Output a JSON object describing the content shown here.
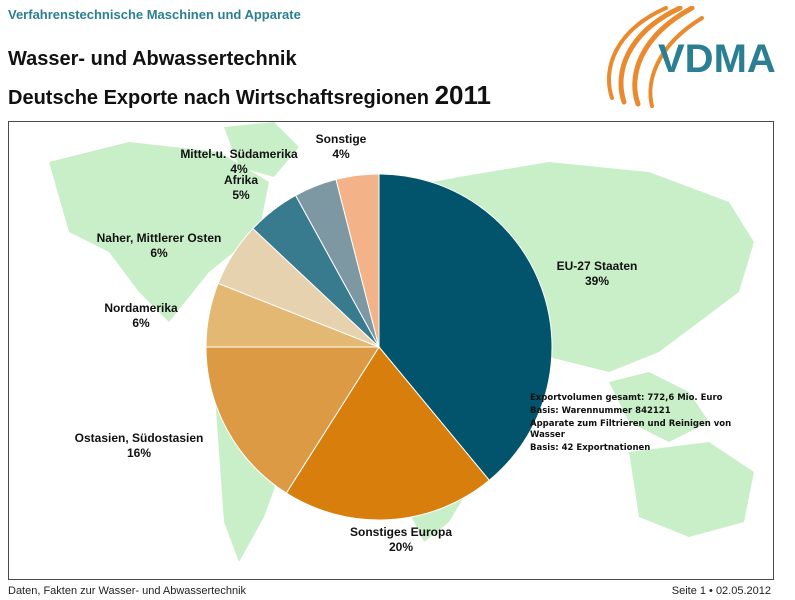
{
  "header": {
    "top_label": "Verfahrenstechnische Maschinen und Apparate",
    "title_line1": "Wasser- und Abwassertechnik",
    "title_line2": "Deutsche Exporte nach Wirtschaftsregionen",
    "title_year": "2011",
    "logo_text": "VDMA"
  },
  "colors": {
    "header_teal": "#2a7f92",
    "logo_orange": "#e98a2e",
    "map_green": "#c9efc9"
  },
  "chart_data": {
    "type": "pie",
    "title": "Deutsche Exporte nach Wirtschaftsregionen 2011",
    "slices": [
      {
        "label": "EU-27 Staaten",
        "value": 39,
        "display": "39%",
        "color": "#02546c"
      },
      {
        "label": "Sonstiges Europa",
        "value": 20,
        "display": "20%",
        "color": "#d77e0c"
      },
      {
        "label": "Ostasien, Südostasien",
        "value": 16,
        "display": "16%",
        "color": "#dd9a44"
      },
      {
        "label": "Nordamerika",
        "value": 6,
        "display": "6%",
        "color": "#e3b873"
      },
      {
        "label": "Naher, Mittlerer Osten",
        "value": 6,
        "display": "6%",
        "color": "#e7d2b0"
      },
      {
        "label": "Afrika",
        "value": 5,
        "display": "5%",
        "color": "#387a8e"
      },
      {
        "label": "Mittel-u. Südamerika",
        "value": 4,
        "display": "4%",
        "color": "#7d98a3"
      },
      {
        "label": "Sonstige",
        "value": 4,
        "display": "4%",
        "color": "#f3b287"
      }
    ]
  },
  "info": {
    "line1": "Exportvolumen gesamt: 772,6 Mio. Euro",
    "line2": "Basis: Warennummer 842121",
    "line3": "Apparate zum Filtrieren und Reinigen von Wasser",
    "line4": "Basis: 42 Exportnationen"
  },
  "footer": {
    "left": "Daten, Fakten zur Wasser- und Abwassertechnik",
    "right": "Seite 1 • 02.05.2012"
  }
}
